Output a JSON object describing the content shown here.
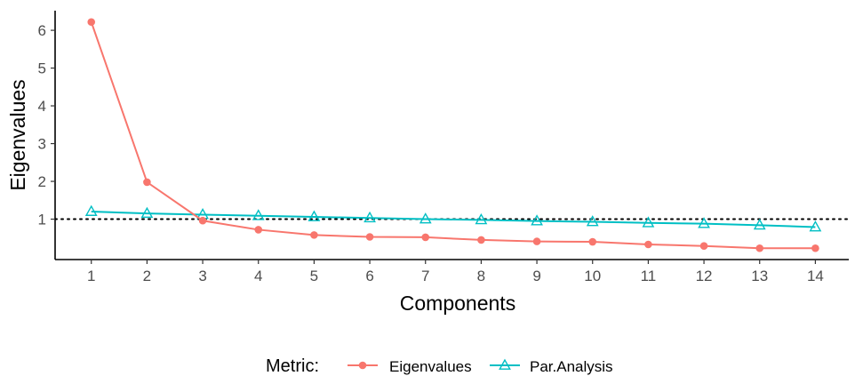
{
  "chart_data": {
    "type": "line",
    "xlabel": "Components",
    "ylabel": "Eigenvalues",
    "x": [
      1,
      2,
      3,
      4,
      5,
      6,
      7,
      8,
      9,
      10,
      11,
      12,
      13,
      14
    ],
    "xlim": [
      0.35,
      14.6
    ],
    "ylim": [
      -0.07,
      6.52
    ],
    "yticks": [
      1,
      2,
      3,
      4,
      5,
      6
    ],
    "reference_line": {
      "y": 1,
      "style": "dotted",
      "color": "#000000"
    },
    "series": [
      {
        "name": "Eigenvalues",
        "marker": "circle",
        "color": "#F8766D",
        "values": [
          6.22,
          1.98,
          0.96,
          0.72,
          0.58,
          0.53,
          0.52,
          0.45,
          0.41,
          0.4,
          0.33,
          0.29,
          0.23,
          0.23
        ]
      },
      {
        "name": "Par.Analysis",
        "marker": "triangle",
        "color": "#00BFC4",
        "values": [
          1.2,
          1.15,
          1.12,
          1.09,
          1.06,
          1.03,
          1.0,
          0.98,
          0.95,
          0.93,
          0.9,
          0.88,
          0.84,
          0.79
        ]
      }
    ],
    "legend": {
      "title": "Metric:",
      "position": "bottom"
    },
    "grid": false
  }
}
